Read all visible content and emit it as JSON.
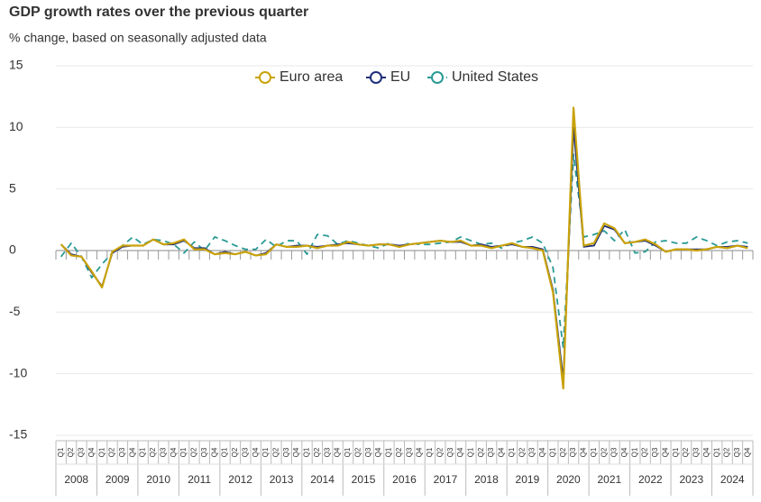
{
  "chart_data": {
    "type": "line",
    "title": "GDP growth rates over the previous quarter",
    "subtitle": "% change, based on seasonally adjusted data",
    "categories": [
      "Q1",
      "Q2",
      "Q3",
      "Q4",
      "Q1",
      "Q2",
      "Q3",
      "Q4",
      "Q1",
      "Q2",
      "Q3",
      "Q4",
      "Q1",
      "Q2",
      "Q3",
      "Q4",
      "Q1",
      "Q2",
      "Q3",
      "Q4",
      "Q1",
      "Q2",
      "Q3",
      "Q4",
      "Q1",
      "Q2",
      "Q3",
      "Q4",
      "Q1",
      "Q2",
      "Q3",
      "Q4",
      "Q1",
      "Q2",
      "Q3",
      "Q4",
      "Q1",
      "Q2",
      "Q3",
      "Q4",
      "Q1",
      "Q2",
      "Q3",
      "Q4",
      "Q1",
      "Q2",
      "Q3",
      "Q4",
      "Q1",
      "Q2",
      "Q3",
      "Q4",
      "Q1",
      "Q2",
      "Q3",
      "Q4",
      "Q1",
      "Q2",
      "Q3",
      "Q4",
      "Q1",
      "Q2",
      "Q3",
      "Q4",
      "Q1",
      "Q2",
      "Q3",
      "Q4"
    ],
    "years": [
      "2008",
      "2009",
      "2010",
      "2011",
      "2012",
      "2013",
      "2014",
      "2015",
      "2016",
      "2017",
      "2018",
      "2019",
      "2020",
      "2021",
      "2022",
      "2023",
      "2024"
    ],
    "series": [
      {
        "name": "Euro area",
        "color": "#c9a20a",
        "line_style": "solid",
        "values": [
          0.5,
          -0.4,
          -0.5,
          -1.7,
          -3.0,
          -0.1,
          0.4,
          0.4,
          0.4,
          0.9,
          0.5,
          0.6,
          0.9,
          0.1,
          0.1,
          -0.3,
          -0.2,
          -0.3,
          -0.1,
          -0.4,
          -0.3,
          0.5,
          0.3,
          0.3,
          0.4,
          0.2,
          0.4,
          0.4,
          0.7,
          0.5,
          0.4,
          0.5,
          0.5,
          0.3,
          0.5,
          0.6,
          0.7,
          0.8,
          0.7,
          0.8,
          0.4,
          0.4,
          0.2,
          0.4,
          0.6,
          0.3,
          0.2,
          0.0,
          -3.4,
          -11.2,
          11.6,
          0.4,
          0.6,
          2.2,
          1.8,
          0.6,
          0.7,
          0.9,
          0.5,
          -0.1,
          0.1,
          0.1,
          0.0,
          0.1,
          0.3,
          0.2,
          0.4,
          0.2
        ]
      },
      {
        "name": "EU",
        "color": "#1f2e7a",
        "line_style": "solid",
        "values": [
          0.5,
          -0.3,
          -0.5,
          -1.8,
          -2.9,
          -0.2,
          0.3,
          0.4,
          0.4,
          0.9,
          0.5,
          0.5,
          0.8,
          0.2,
          0.2,
          -0.3,
          -0.1,
          -0.3,
          -0.1,
          -0.4,
          -0.2,
          0.5,
          0.3,
          0.4,
          0.4,
          0.3,
          0.4,
          0.5,
          0.6,
          0.5,
          0.4,
          0.5,
          0.5,
          0.4,
          0.5,
          0.6,
          0.7,
          0.8,
          0.7,
          0.7,
          0.4,
          0.5,
          0.3,
          0.4,
          0.5,
          0.3,
          0.3,
          0.1,
          -3.2,
          -10.5,
          10.0,
          0.3,
          0.4,
          2.0,
          1.7,
          0.6,
          0.7,
          0.8,
          0.4,
          -0.1,
          0.1,
          0.1,
          0.1,
          0.1,
          0.3,
          0.3,
          0.4,
          0.3
        ]
      },
      {
        "name": "United States",
        "color": "#2a9a94",
        "line_style": "dashed",
        "values": [
          -0.5,
          0.6,
          -0.5,
          -2.2,
          -1.1,
          -0.2,
          0.4,
          1.1,
          0.5,
          0.9,
          0.8,
          0.5,
          -0.2,
          0.7,
          0.0,
          1.1,
          0.8,
          0.4,
          0.1,
          0.1,
          0.9,
          0.3,
          0.8,
          0.8,
          -0.3,
          1.3,
          1.2,
          0.5,
          0.8,
          0.6,
          0.4,
          0.2,
          0.6,
          0.3,
          0.6,
          0.5,
          0.5,
          0.6,
          0.7,
          1.1,
          0.8,
          0.5,
          0.6,
          0.2,
          0.6,
          0.8,
          1.1,
          0.6,
          -1.4,
          -7.9,
          7.8,
          1.1,
          1.3,
          1.6,
          0.8,
          1.7,
          -0.2,
          -0.1,
          0.7,
          0.8,
          0.6,
          0.6,
          1.1,
          0.8,
          0.4,
          0.7,
          0.8,
          0.6
        ]
      }
    ],
    "ylim": [
      -15,
      15
    ],
    "yticks": [
      -15,
      -10,
      -5,
      0,
      5,
      10,
      15
    ],
    "grid": true,
    "legend": "top"
  }
}
